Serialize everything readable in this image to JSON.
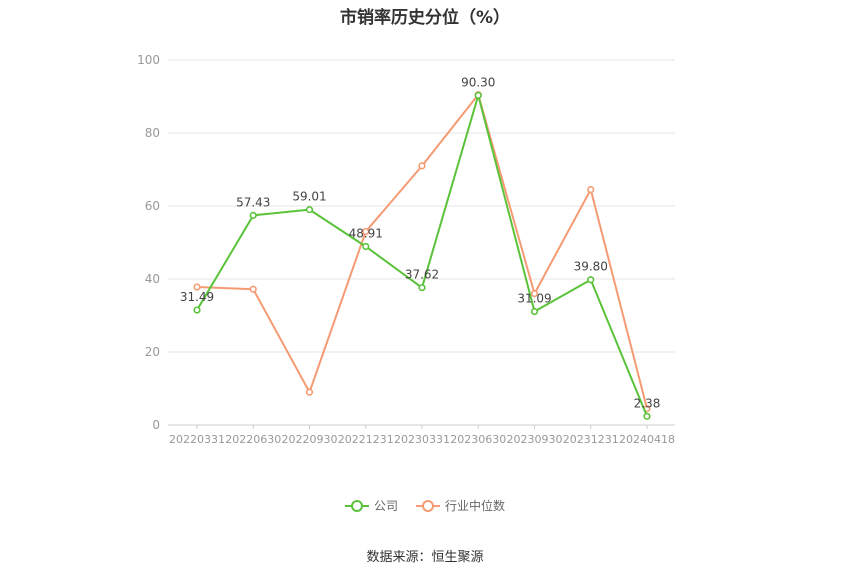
{
  "title": "市销率历史分位（%）",
  "source": "数据来源：恒生聚源",
  "chart_data": {
    "type": "line",
    "categories": [
      "20220331",
      "20220630",
      "20220930",
      "20221231",
      "20230331",
      "20230630",
      "20230930",
      "20231231",
      "20240418"
    ],
    "series": [
      {
        "name": "公司",
        "color": "#5ac33a",
        "values": [
          31.49,
          57.43,
          59.01,
          48.91,
          37.62,
          90.3,
          31.09,
          39.8,
          2.38
        ],
        "labels": [
          "31.49",
          "57.43",
          "59.01",
          "48.91",
          "37.62",
          "90.30",
          "31.09",
          "39.80",
          "2.38"
        ]
      },
      {
        "name": "行业中位数",
        "color": "#f59a73",
        "values": [
          37.8,
          37.2,
          9.0,
          53.0,
          71.0,
          90.5,
          36.0,
          64.5,
          4.5
        ]
      }
    ],
    "ylim": [
      0,
      100
    ],
    "yticks": [
      0,
      20,
      40,
      60,
      80,
      100
    ],
    "grid": true,
    "legend": "bottom-center"
  }
}
